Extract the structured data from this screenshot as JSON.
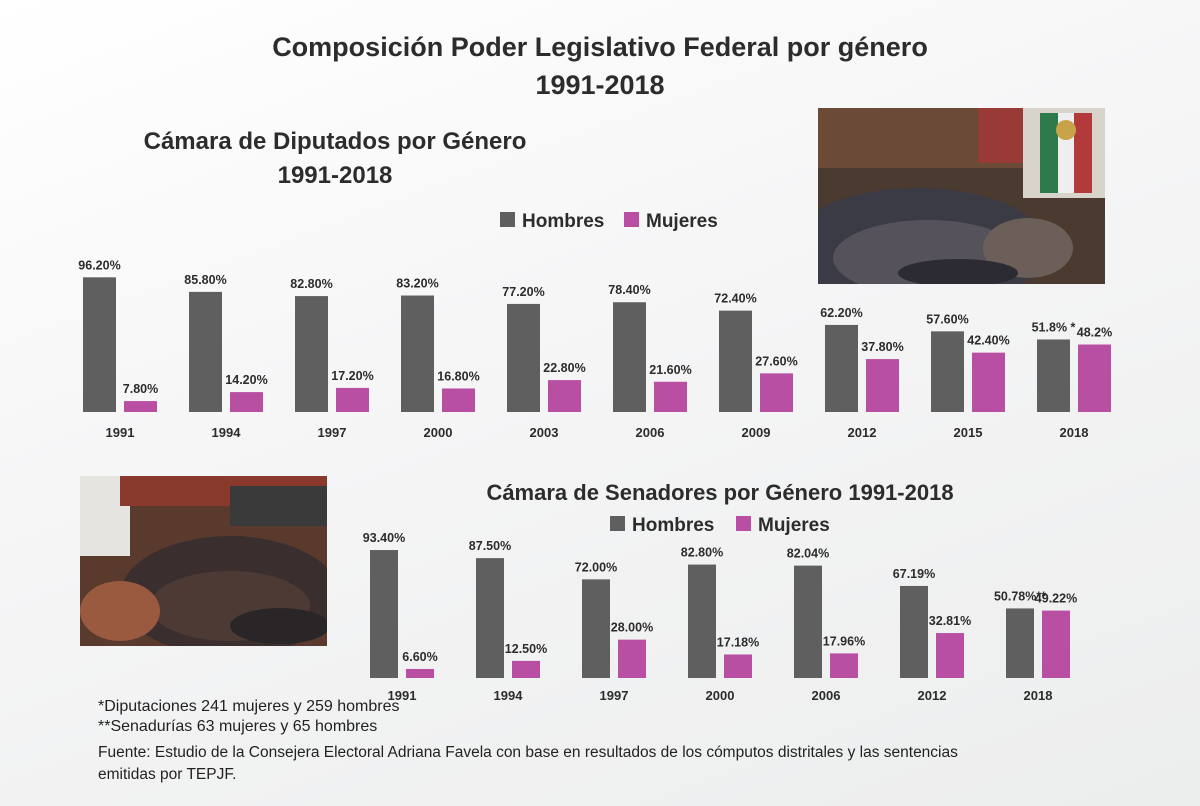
{
  "page": {
    "title_line1": "Composición Poder Legislativo Federal por género",
    "title_line2": "1991-2018"
  },
  "colors": {
    "hombres": "#5f5f5f",
    "mujeres": "#b84fa3",
    "text": "#2c2c2c"
  },
  "legend": {
    "hombres": "Hombres",
    "mujeres": "Mujeres"
  },
  "chart_data": [
    {
      "type": "bar",
      "title_line1": "Cámara de Diputados por Género",
      "title_line2": "1991-2018",
      "categories": [
        "1991",
        "1994",
        "1997",
        "2000",
        "2003",
        "2006",
        "2009",
        "2012",
        "2015",
        "2018"
      ],
      "series": [
        {
          "name": "Hombres",
          "values": [
            96.2,
            85.8,
            82.8,
            83.2,
            77.2,
            78.4,
            72.4,
            62.2,
            57.6,
            51.8
          ],
          "labels": [
            "96.20%",
            "85.80%",
            "82.80%",
            "83.20%",
            "77.20%",
            "78.40%",
            "72.40%",
            "62.20%",
            "57.60%",
            "51.8% *"
          ]
        },
        {
          "name": "Mujeres",
          "values": [
            7.8,
            14.2,
            17.2,
            16.8,
            22.8,
            21.6,
            27.6,
            37.8,
            42.4,
            48.2
          ],
          "labels": [
            "7.80%",
            "14.20%",
            "17.20%",
            "16.80%",
            "22.80%",
            "21.60%",
            "27.60%",
            "37.80%",
            "42.40%",
            "48.2%"
          ]
        }
      ],
      "ylim": [
        0,
        100
      ]
    },
    {
      "type": "bar",
      "title": "Cámara de Senadores por Género 1991-2018",
      "categories": [
        "1991",
        "1994",
        "1997",
        "2000",
        "2006",
        "2012",
        "2018"
      ],
      "series": [
        {
          "name": "Hombres",
          "values": [
            93.4,
            87.5,
            72.0,
            82.8,
            82.04,
            67.19,
            50.78
          ],
          "labels": [
            "93.40%",
            "87.50%",
            "72.00%",
            "82.80%",
            "82.04%",
            "67.19%",
            "50.78%**"
          ]
        },
        {
          "name": "Mujeres",
          "values": [
            6.6,
            12.5,
            28.0,
            17.18,
            17.96,
            32.81,
            49.22
          ],
          "labels": [
            "6.60%",
            "12.50%",
            "28.00%",
            "17.18%",
            "17.96%",
            "32.81%",
            "49.22%"
          ]
        }
      ],
      "ylim": [
        0,
        100
      ]
    }
  ],
  "notes": {
    "diputaciones": "*Diputaciones  241 mujeres y 259 hombres",
    "senadurias": "**Senadurías 63 mujeres y 65 hombres",
    "fuente_line1": "Fuente: Estudio de la Consejera Electoral Adriana Favela con base en resultados de los cómputos distritales y las sentencias",
    "fuente_line2": "emitidas por  TEPJF."
  }
}
